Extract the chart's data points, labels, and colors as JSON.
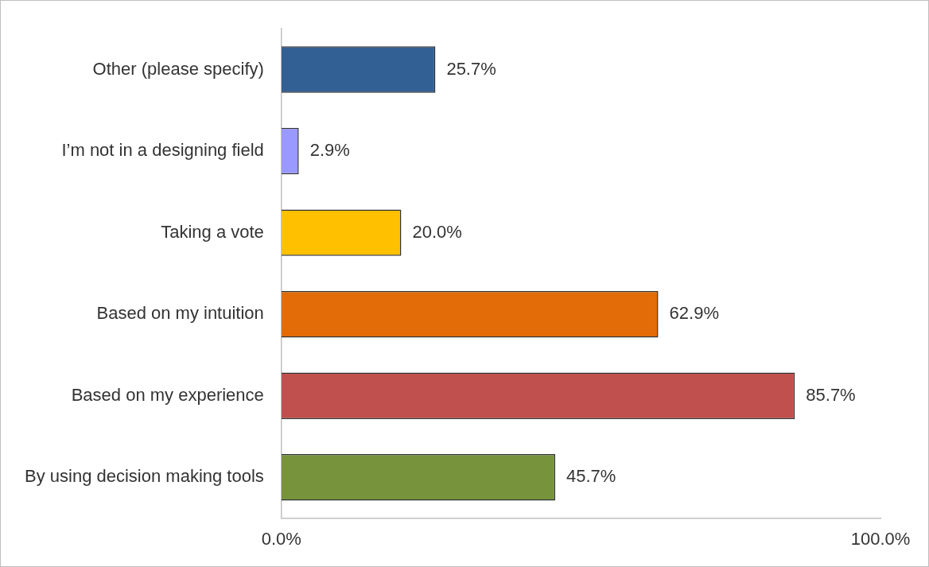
{
  "chart_data": {
    "type": "bar",
    "orientation": "horizontal",
    "categories": [
      "Other (please specify)",
      "I’m not in a designing field",
      "Taking a vote",
      "Based on my intuition",
      "Based on my experience",
      "By using decision making tools"
    ],
    "values": [
      25.7,
      2.9,
      20.0,
      62.9,
      85.7,
      45.7
    ],
    "colors": [
      "#336094",
      "#9999ff",
      "#ffc000",
      "#e36c09",
      "#c0504d",
      "#77933c"
    ],
    "value_labels": [
      "25.7%",
      "2.9%",
      "20.0%",
      "62.9%",
      "85.7%",
      "45.7%"
    ],
    "xlim": [
      0,
      100
    ],
    "xticks": [
      {
        "value": 0,
        "label": "0.0%"
      },
      {
        "value": 100,
        "label": "100.0%"
      }
    ],
    "grid": false,
    "legend": false
  }
}
